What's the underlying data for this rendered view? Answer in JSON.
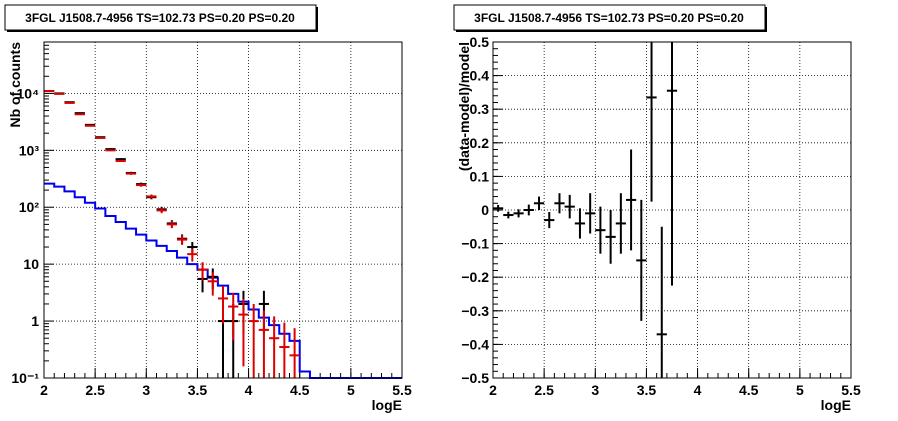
{
  "chart_data": [
    {
      "type": "line",
      "title": "3FGL J1508.7-4956 TS=102.73 PS=0.20 PS=0.20",
      "xlabel": "logE",
      "ylabel": "Nb of counts",
      "xlim": [
        2,
        5.5
      ],
      "ylim": [
        0.1,
        80000
      ],
      "ylog": true,
      "grid": true,
      "x_ticks": [
        2,
        2.5,
        3,
        3.5,
        4,
        4.5,
        5,
        5.5
      ],
      "x_tick_labels": [
        "2",
        "2.5",
        "3",
        "3.5",
        "4",
        "4.5",
        "5",
        "5.5"
      ],
      "y_ticks": [
        0.1,
        1,
        10,
        100,
        1000,
        10000
      ],
      "y_tick_labels": [
        "10⁻¹",
        "1",
        "10",
        "10²",
        "10³",
        "10⁴"
      ],
      "bin_edges": [
        2.0,
        2.1,
        2.2,
        2.3,
        2.4,
        2.5,
        2.6,
        2.7,
        2.8,
        2.9,
        3.0,
        3.1,
        3.2,
        3.3,
        3.4,
        3.5,
        3.6,
        3.7,
        3.8,
        3.9,
        4.0,
        4.1,
        4.2,
        4.3,
        4.4,
        4.5,
        4.6,
        4.7,
        4.8,
        4.9,
        5.0,
        5.1,
        5.2,
        5.3,
        5.4,
        5.5
      ],
      "series": [
        {
          "color": "#0000ee",
          "style": "histogram",
          "values": [
            260,
            230,
            190,
            150,
            120,
            95,
            70,
            55,
            42,
            33,
            26,
            21,
            17,
            13,
            10,
            8,
            5.8,
            4.2,
            3,
            2.2,
            1.6,
            1.15,
            0.85,
            0.6,
            0.45,
            0.13,
            0.1,
            0.1,
            0.1,
            0.1,
            0.1,
            0.1,
            0.1,
            0.1,
            0.1
          ]
        },
        {
          "color": "#000000",
          "style": "points",
          "x": [
            2.05,
            2.15,
            2.25,
            2.35,
            2.45,
            2.55,
            2.65,
            2.75,
            2.85,
            2.95,
            3.05,
            3.15,
            3.25,
            3.35,
            3.45,
            3.55,
            3.65,
            3.75,
            3.85,
            3.95,
            4.15
          ],
          "y": [
            11000,
            10000,
            7000,
            4500,
            2800,
            1700,
            1050,
            700,
            400,
            255,
            150,
            92,
            52,
            28,
            20,
            5.5,
            6,
            1,
            1,
            2,
            2
          ],
          "yerr": [
            105,
            100,
            84,
            67,
            53,
            41,
            32,
            26,
            20,
            16,
            12,
            9.6,
            7.2,
            5.3,
            4.5,
            2.3,
            2.4,
            1,
            1,
            1.4,
            1.4
          ]
        },
        {
          "color": "#dd0000",
          "style": "points",
          "x": [
            2.05,
            2.15,
            2.25,
            2.35,
            2.45,
            2.55,
            2.65,
            2.75,
            2.85,
            2.95,
            3.05,
            3.15,
            3.25,
            3.35,
            3.45,
            3.55,
            3.65,
            3.75,
            3.85,
            3.95,
            4.05,
            4.15,
            4.25,
            4.35,
            4.45
          ],
          "y": [
            11000,
            9800,
            6800,
            4300,
            2700,
            1650,
            1000,
            650,
            390,
            245,
            155,
            88,
            50,
            27,
            15,
            8,
            5,
            2.5,
            1.8,
            1.3,
            1,
            0.7,
            0.5,
            0.35,
            0.25
          ],
          "yerr": [
            105,
            99,
            82,
            66,
            52,
            41,
            32,
            25,
            20,
            16,
            12.4,
            9.4,
            7.1,
            5.2,
            3.9,
            2.8,
            2.2,
            1.6,
            1.34,
            1.14,
            1,
            0.84,
            0.71,
            0.59,
            0.5
          ]
        }
      ]
    },
    {
      "type": "scatter",
      "title": "3FGL J1508.7-4956 TS=102.73 PS=0.20 PS=0.20",
      "xlabel": "logE",
      "ylabel": "(data-model)/model",
      "xlim": [
        2,
        5.5
      ],
      "ylim": [
        -0.5,
        0.5
      ],
      "grid": true,
      "x_ticks": [
        2,
        2.5,
        3,
        3.5,
        4,
        4.5,
        5,
        5.5
      ],
      "x_tick_labels": [
        "2",
        "2.5",
        "3",
        "3.5",
        "4",
        "4.5",
        "5",
        "5.5"
      ],
      "y_ticks": [
        -0.5,
        -0.4,
        -0.3,
        -0.2,
        -0.1,
        0,
        0.1,
        0.2,
        0.3,
        0.4,
        0.5
      ],
      "y_tick_labels": [
        "−0.5",
        "−0.4",
        "−0.3",
        "−0.2",
        "−0.1",
        "0",
        "0.1",
        "0.2",
        "0.3",
        "0.4",
        "0.5"
      ],
      "series": [
        {
          "color": "#000000",
          "x": [
            2.05,
            2.15,
            2.25,
            2.35,
            2.45,
            2.55,
            2.65,
            2.75,
            2.85,
            2.95,
            3.05,
            3.15,
            3.25,
            3.35,
            3.45,
            3.55,
            3.65,
            3.75
          ],
          "y": [
            0.005,
            -0.015,
            -0.01,
            0.0,
            0.02,
            -0.03,
            0.02,
            0.01,
            -0.04,
            -0.01,
            -0.06,
            -0.08,
            -0.04,
            0.03,
            -0.15,
            0.335,
            -0.37,
            0.355
          ],
          "yerr": [
            0.01,
            0.01,
            0.012,
            0.016,
            0.02,
            0.024,
            0.03,
            0.035,
            0.045,
            0.06,
            0.07,
            0.08,
            0.09,
            0.15,
            0.18,
            0.31,
            0.32,
            0.58
          ]
        }
      ]
    }
  ]
}
